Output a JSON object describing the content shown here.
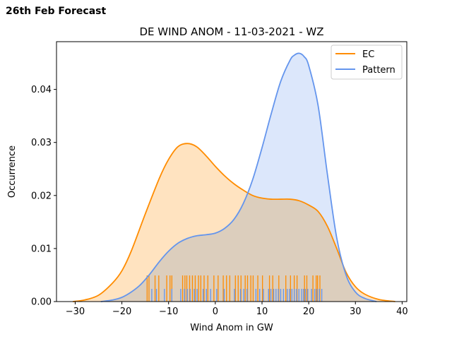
{
  "header": {
    "title": "26th Feb Forecast"
  },
  "chart_data": {
    "type": "area",
    "title": "DE WIND ANOM - 11-03-2021 - WZ",
    "xlabel": "Wind Anom in GW",
    "ylabel": "Occurrence",
    "xlim": [
      -34,
      41
    ],
    "ylim": [
      0,
      0.049
    ],
    "xticks": [
      -30,
      -20,
      -10,
      0,
      10,
      20,
      30,
      40
    ],
    "yticks": [
      0.0,
      0.01,
      0.02,
      0.03,
      0.04
    ],
    "ytick_labels": [
      "0.00",
      "0.01",
      "0.02",
      "0.03",
      "0.04"
    ],
    "grid": false,
    "legend_position": "top-right",
    "series": [
      {
        "name": "EC",
        "color": "#ff8c00",
        "fill": "#ffdeb5",
        "x": [
          -30.5,
          -28,
          -25,
          -22,
          -20,
          -18,
          -15,
          -12,
          -10,
          -8,
          -6,
          -4,
          -2,
          0,
          2,
          4,
          6,
          8,
          10,
          12,
          14,
          16,
          18,
          20,
          22,
          24,
          26,
          28,
          30,
          32,
          35,
          38.5
        ],
        "y": [
          0.0,
          0.0003,
          0.0012,
          0.0035,
          0.0058,
          0.0095,
          0.0165,
          0.0232,
          0.0268,
          0.0292,
          0.0298,
          0.0292,
          0.0275,
          0.0255,
          0.0237,
          0.0222,
          0.021,
          0.02,
          0.0195,
          0.0193,
          0.0193,
          0.0193,
          0.019,
          0.0182,
          0.017,
          0.0142,
          0.01,
          0.0055,
          0.0028,
          0.0014,
          0.0004,
          0.0
        ]
      },
      {
        "name": "Pattern",
        "color": "#6495ed",
        "fill": "#d6e3fa",
        "x": [
          -24.5,
          -22,
          -20,
          -18,
          -16,
          -14,
          -12,
          -10,
          -8,
          -6,
          -4,
          -2,
          0,
          2,
          4,
          6,
          8,
          10,
          12,
          14,
          16,
          17,
          18,
          19,
          20,
          22,
          24,
          26,
          28,
          30,
          32,
          34.5
        ],
        "y": [
          0.0,
          0.0003,
          0.0008,
          0.0018,
          0.0032,
          0.0052,
          0.0075,
          0.0095,
          0.011,
          0.0119,
          0.0124,
          0.0126,
          0.0129,
          0.0138,
          0.0155,
          0.0185,
          0.023,
          0.029,
          0.0355,
          0.0415,
          0.0455,
          0.0465,
          0.0468,
          0.0462,
          0.0445,
          0.037,
          0.024,
          0.012,
          0.005,
          0.0018,
          0.0006,
          0.0
        ]
      }
    ],
    "rug": {
      "EC": [
        -14.6,
        -14.2,
        -12.9,
        -12.1,
        -10.4,
        -9.7,
        -9.3,
        -7.0,
        -6.5,
        -6.1,
        -5.5,
        -4.9,
        -4.3,
        -3.6,
        -3.1,
        -2.4,
        -1.6,
        -0.3,
        0.6,
        1.7,
        2.4,
        3.1,
        4.3,
        4.9,
        5.5,
        6.4,
        6.9,
        7.6,
        8.1,
        9.1,
        10.1,
        11.6,
        12.3,
        13.6,
        15.1,
        16.1,
        16.9,
        17.5,
        19.1,
        19.6,
        20.9,
        21.6,
        21.9,
        22.4
      ],
      "Pattern": [
        -13.6,
        -12.6,
        -10.9,
        -9.3,
        -7.4,
        -6.6,
        -6.0,
        -5.4,
        -4.5,
        -3.9,
        -2.6,
        -1.9,
        -1.0,
        0.3,
        1.9,
        4.1,
        5.4,
        6.1,
        6.8,
        8.7,
        9.5,
        10.3,
        11.4,
        11.9,
        12.5,
        13.0,
        13.5,
        14.0,
        14.6,
        15.4,
        15.9,
        16.4,
        16.9,
        17.4,
        17.9,
        18.5,
        18.9,
        19.3,
        19.8,
        20.6,
        21.3,
        21.8,
        22.3,
        22.8
      ]
    }
  }
}
